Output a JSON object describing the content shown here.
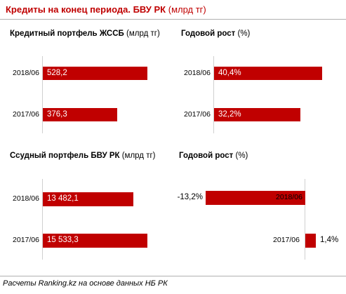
{
  "title": {
    "main": "Кредиты на конец периода. БВУ РК",
    "unit": "(млрд тг)"
  },
  "footer": "Расчеты Ranking.kz на основе данных НБ РК",
  "colors": {
    "bar": "#c00000",
    "title": "#c00000"
  },
  "chart_data": [
    {
      "type": "bar",
      "orientation": "horizontal",
      "title": {
        "bold": "Кредитный портфель ЖССБ",
        "unit": "(млрд тг)"
      },
      "categories": [
        "2018/06",
        "2017/06"
      ],
      "values": [
        528.2,
        376.3
      ],
      "labels": [
        "528,2",
        "376,3"
      ]
    },
    {
      "type": "bar",
      "orientation": "horizontal",
      "title": {
        "bold": "Годовой рост",
        "unit": "(%)"
      },
      "categories": [
        "2018/06",
        "2017/06"
      ],
      "values": [
        40.4,
        32.2
      ],
      "labels": [
        "40,4%",
        "32,2%"
      ]
    },
    {
      "type": "bar",
      "orientation": "horizontal",
      "title": {
        "bold": "Ссудный портфель БВУ РК",
        "unit": "(млрд тг)"
      },
      "categories": [
        "2018/06",
        "2017/06"
      ],
      "values": [
        13482.1,
        15533.3
      ],
      "labels": [
        "13 482,1",
        "15 533,3"
      ]
    },
    {
      "type": "bar",
      "orientation": "horizontal",
      "title": {
        "bold": "Годовой рост",
        "unit": "(%)"
      },
      "categories": [
        "2018/06",
        "2017/06"
      ],
      "values": [
        -13.2,
        1.4
      ],
      "labels": [
        "-13,2%",
        "1,4%"
      ]
    }
  ]
}
